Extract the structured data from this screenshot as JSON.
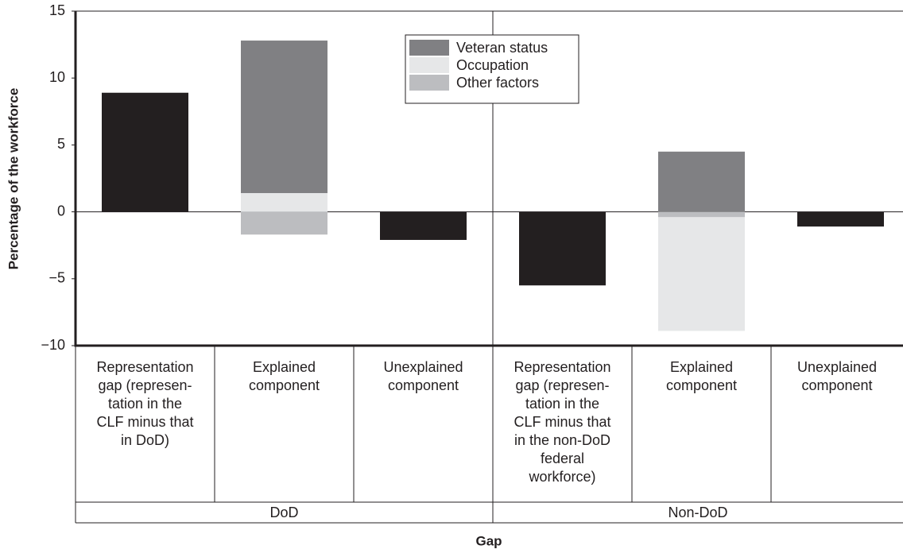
{
  "chart_data": {
    "type": "stacked-bar",
    "y_label": "Percentage of the workforce",
    "x_label": "Gap",
    "categories": [
      [
        "Representation",
        "gap (represen-",
        "tation in the",
        "CLF minus that",
        "in DoD)"
      ],
      [
        "Explained",
        "component"
      ],
      [
        "Unexplained",
        "component"
      ],
      [
        "Representation",
        "gap (represen-",
        "tation in the",
        "CLF minus that",
        "in the non-DoD",
        "federal",
        "workforce)"
      ],
      [
        "Explained",
        "component"
      ],
      [
        "Unexplained",
        "component"
      ]
    ],
    "groups": [
      "DoD",
      "Non-DoD"
    ],
    "values": [
      8.9,
      null,
      -2.1,
      -5.5,
      null,
      -1.1
    ],
    "color": "#231f20",
    "series": [
      {
        "name": "Veteran status",
        "color": "#808083",
        "values": [
          null,
          11.4,
          null,
          null,
          4.5,
          null
        ]
      },
      {
        "name": "Occupation",
        "color": "#e6e7e8",
        "values": [
          null,
          1.4,
          null,
          null,
          -8.5,
          null
        ]
      },
      {
        "name": "Other factors",
        "color": "#bcbdc0",
        "values": [
          null,
          -1.7,
          null,
          null,
          -0.4,
          null
        ]
      }
    ],
    "ylim": [
      -10,
      15
    ],
    "yticks": [
      {
        "value": -10,
        "label": "−10"
      },
      {
        "value": -5,
        "label": "−5"
      },
      0,
      5,
      10,
      15
    ],
    "legend": "upper center"
  }
}
